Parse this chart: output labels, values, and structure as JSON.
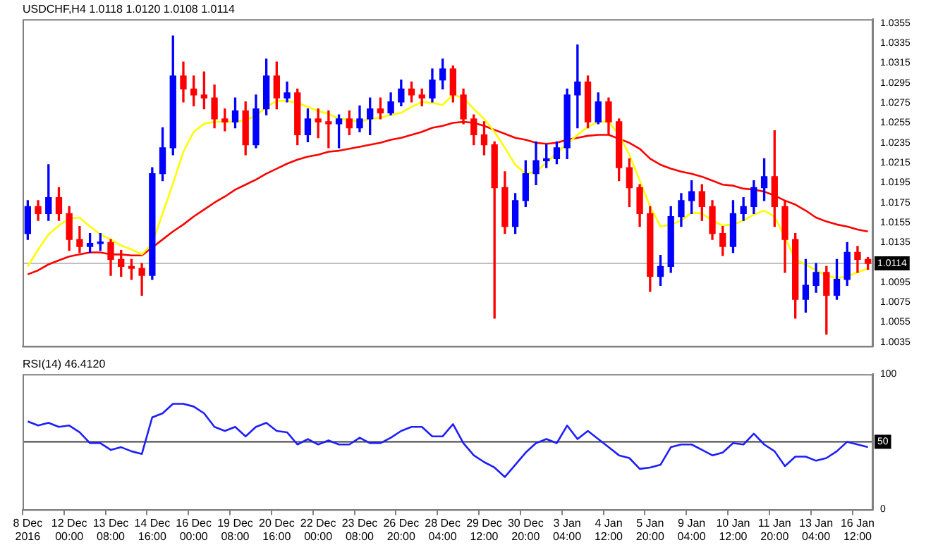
{
  "chart_data": [
    {
      "type": "candlestick",
      "title": "USDCHF,H4 1.0118 1.0120 1.0108 1.0114",
      "categories": [
        null,
        null,
        null,
        null,
        null,
        null,
        null,
        null,
        null,
        null,
        null,
        null,
        null,
        null,
        null,
        null,
        null,
        null,
        null,
        null,
        null,
        null,
        null,
        null,
        null,
        null,
        null,
        null,
        null,
        null,
        null,
        null,
        null,
        null,
        null,
        null,
        null,
        null,
        null,
        null,
        null,
        null,
        null,
        null,
        null,
        null,
        null,
        null,
        null,
        null,
        null,
        null,
        null,
        null,
        null,
        null,
        null,
        null,
        null,
        null,
        null,
        null,
        null,
        null,
        null,
        null,
        null,
        null,
        null,
        null,
        null,
        null,
        null,
        null,
        null,
        null,
        null,
        null,
        null,
        null,
        null,
        null
      ],
      "ohlc": [
        [
          1.0144,
          1.0177,
          1.0138,
          1.0171
        ],
        [
          1.0171,
          1.0177,
          1.0157,
          1.0164
        ],
        [
          1.0164,
          1.0213,
          1.0157,
          1.018
        ],
        [
          1.018,
          1.019,
          1.0157,
          1.0164
        ],
        [
          1.0164,
          1.0171,
          1.0127,
          1.0138
        ],
        [
          1.0138,
          1.0151,
          1.0125,
          1.0131
        ],
        [
          1.0131,
          1.0144,
          1.0125,
          1.0134
        ],
        [
          1.0134,
          1.0144,
          1.0127,
          1.0135
        ],
        [
          1.0135,
          1.0138,
          1.0102,
          1.0118
        ],
        [
          1.0118,
          1.0127,
          1.0101,
          1.0111
        ],
        [
          1.0111,
          1.0118,
          1.0098,
          1.0109
        ],
        [
          1.0109,
          1.0114,
          1.0082,
          1.0102
        ],
        [
          1.0102,
          1.021,
          1.0098,
          1.0204
        ],
        [
          1.0204,
          1.025,
          1.0197,
          1.023
        ],
        [
          1.023,
          1.0342,
          1.0223,
          1.0302
        ],
        [
          1.0302,
          1.0316,
          1.0276,
          1.0289
        ],
        [
          1.0289,
          1.0302,
          1.0272,
          1.0283
        ],
        [
          1.0283,
          1.0306,
          1.0269,
          1.028
        ],
        [
          1.028,
          1.0293,
          1.025,
          1.0259
        ],
        [
          1.0259,
          1.0269,
          1.0247,
          1.0256
        ],
        [
          1.0256,
          1.028,
          1.025,
          1.0267
        ],
        [
          1.0267,
          1.0276,
          1.0223,
          1.0233
        ],
        [
          1.0233,
          1.0283,
          1.023,
          1.0269
        ],
        [
          1.0269,
          1.0319,
          1.0263,
          1.0302
        ],
        [
          1.0302,
          1.0316,
          1.0269,
          1.028
        ],
        [
          1.028,
          1.0296,
          1.0276,
          1.0285
        ],
        [
          1.0285,
          1.0289,
          1.0233,
          1.0243
        ],
        [
          1.0243,
          1.0269,
          1.0236,
          1.0259
        ],
        [
          1.0259,
          1.0269,
          1.024,
          1.0256
        ],
        [
          1.0256,
          1.0267,
          1.023,
          1.0254
        ],
        [
          1.0254,
          1.0263,
          1.023,
          1.0259
        ],
        [
          1.0259,
          1.0267,
          1.0243,
          1.025
        ],
        [
          1.025,
          1.0272,
          1.0246,
          1.0259
        ],
        [
          1.0259,
          1.028,
          1.0243,
          1.0269
        ],
        [
          1.0269,
          1.028,
          1.0259,
          1.0265
        ],
        [
          1.0265,
          1.0285,
          1.0263,
          1.0276
        ],
        [
          1.0276,
          1.0298,
          1.0272,
          1.0289
        ],
        [
          1.0289,
          1.0296,
          1.0276,
          1.0283
        ],
        [
          1.0283,
          1.0289,
          1.0272,
          1.028
        ],
        [
          1.028,
          1.0309,
          1.0276,
          1.0298
        ],
        [
          1.0298,
          1.0319,
          1.0289,
          1.0309
        ],
        [
          1.0309,
          1.0312,
          1.0276,
          1.0283
        ],
        [
          1.0283,
          1.0289,
          1.0254,
          1.0259
        ],
        [
          1.0259,
          1.0263,
          1.0233,
          1.0243
        ],
        [
          1.0243,
          1.0256,
          1.0223,
          1.0233
        ],
        [
          1.0233,
          1.0236,
          1.0059,
          1.019
        ],
        [
          1.019,
          1.0206,
          1.0144,
          1.0151
        ],
        [
          1.0151,
          1.0184,
          1.0144,
          1.0177
        ],
        [
          1.0177,
          1.0217,
          1.0171,
          1.0204
        ],
        [
          1.0204,
          1.0236,
          1.0193,
          1.0217
        ],
        [
          1.0217,
          1.0233,
          1.021,
          1.0219
        ],
        [
          1.0219,
          1.0236,
          1.0214,
          1.023
        ],
        [
          1.023,
          1.0289,
          1.0219,
          1.0283
        ],
        [
          1.0283,
          1.0333,
          1.025,
          1.0296
        ],
        [
          1.0296,
          1.0302,
          1.025,
          1.0256
        ],
        [
          1.0256,
          1.0285,
          1.0254,
          1.0276
        ],
        [
          1.0276,
          1.028,
          1.0243,
          1.0256
        ],
        [
          1.0256,
          1.0259,
          1.0197,
          1.021
        ],
        [
          1.021,
          1.0219,
          1.0171,
          1.019
        ],
        [
          1.019,
          1.0193,
          1.0151,
          1.0164
        ],
        [
          1.0164,
          1.0171,
          1.0086,
          1.0101
        ],
        [
          1.0101,
          1.0122,
          1.0092,
          1.0111
        ],
        [
          1.0111,
          1.0171,
          1.0105,
          1.0161
        ],
        [
          1.0161,
          1.0184,
          1.0151,
          1.0177
        ],
        [
          1.0177,
          1.0197,
          1.0164,
          1.0186
        ],
        [
          1.0186,
          1.0193,
          1.0157,
          1.0171
        ],
        [
          1.0171,
          1.0177,
          1.0138,
          1.0144
        ],
        [
          1.0144,
          1.0151,
          1.0122,
          1.0131
        ],
        [
          1.0131,
          1.0177,
          1.0125,
          1.0164
        ],
        [
          1.0164,
          1.018,
          1.0157,
          1.0171
        ],
        [
          1.0171,
          1.0197,
          1.0164,
          1.019
        ],
        [
          1.019,
          1.0219,
          1.0177,
          1.0201
        ],
        [
          1.0201,
          1.0247,
          1.0151,
          1.0171
        ],
        [
          1.0171,
          1.0177,
          1.0105,
          1.0138
        ],
        [
          1.0138,
          1.0144,
          1.0059,
          1.0078
        ],
        [
          1.0078,
          1.0118,
          1.0065,
          1.0092
        ],
        [
          1.0092,
          1.0114,
          1.0085,
          1.0105
        ],
        [
          1.0105,
          1.0111,
          1.0043,
          1.0082
        ],
        [
          1.0082,
          1.0118,
          1.0078,
          1.0098
        ],
        [
          1.0098,
          1.0135,
          1.0092,
          1.0125
        ],
        [
          1.0125,
          1.0131,
          1.0105,
          1.0118
        ],
        [
          1.0118,
          1.012,
          1.0108,
          1.0114
        ]
      ],
      "colors": [
        "#0000ff",
        "#ff0000",
        "#0000ff",
        "#ff0000",
        "#ff0000",
        "#ff0000",
        "#0000ff",
        "#0000ff",
        "#ff0000",
        "#ff0000",
        "#ff0000",
        "#ff0000",
        "#0000ff",
        "#0000ff",
        "#0000ff",
        "#ff0000",
        "#ff0000",
        "#ff0000",
        "#ff0000",
        "#ff0000",
        "#0000ff",
        "#ff0000",
        "#0000ff",
        "#0000ff",
        "#ff0000",
        "#0000ff",
        "#ff0000",
        "#0000ff",
        "#ff0000",
        "#ff0000",
        "#0000ff",
        "#ff0000",
        "#0000ff",
        "#0000ff",
        "#ff0000",
        "#0000ff",
        "#0000ff",
        "#ff0000",
        "#ff0000",
        "#0000ff",
        "#0000ff",
        "#ff0000",
        "#ff0000",
        "#ff0000",
        "#ff0000",
        "#ff0000",
        "#ff0000",
        "#0000ff",
        "#0000ff",
        "#0000ff",
        "#0000ff",
        "#0000ff",
        "#0000ff",
        "#0000ff",
        "#ff0000",
        "#0000ff",
        "#ff0000",
        "#ff0000",
        "#ff0000",
        "#ff0000",
        "#ff0000",
        "#0000ff",
        "#0000ff",
        "#0000ff",
        "#0000ff",
        "#ff0000",
        "#ff0000",
        "#ff0000",
        "#0000ff",
        "#0000ff",
        "#0000ff",
        "#0000ff",
        "#ff0000",
        "#ff0000",
        "#ff0000",
        "#0000ff",
        "#0000ff",
        "#ff0000",
        "#0000ff",
        "#0000ff",
        "#ff0000",
        "#ff0000"
      ],
      "series": [
        {
          "type": "line",
          "color": "#ffff00",
          "values": [
            1.0111,
            1.0128,
            1.0143,
            1.0152,
            1.0159,
            1.016,
            1.0151,
            1.0143,
            1.0138,
            1.0132,
            1.0128,
            1.0123,
            1.0134,
            1.0164,
            1.0194,
            1.0226,
            1.0246,
            1.0254,
            1.0256,
            1.0256,
            1.0256,
            1.0258,
            1.0262,
            1.0271,
            1.0277,
            1.0277,
            1.0275,
            1.0271,
            1.0267,
            1.0264,
            1.0259,
            1.0258,
            1.0256,
            1.0259,
            1.026,
            1.0263,
            1.0265,
            1.0271,
            1.0276,
            1.0275,
            1.0273,
            1.0283,
            1.028,
            1.0269,
            1.0259,
            1.0246,
            1.023,
            1.0213,
            1.0204,
            1.0206,
            1.0215,
            1.0225,
            1.0234,
            1.0243,
            1.0251,
            1.0256,
            1.0256,
            1.0243,
            1.0223,
            1.0197,
            1.0171,
            1.0151,
            1.0153,
            1.0157,
            1.0165,
            1.0164,
            1.0157,
            1.0152,
            1.0153,
            1.0157,
            1.0163,
            1.0167,
            1.0161,
            1.014,
            1.0118,
            1.0113,
            1.0107,
            1.0102,
            1.0099,
            1.0101,
            1.0105,
            1.0109
          ]
        },
        {
          "type": "line",
          "color": "#ff0000",
          "values": [
            1.0103,
            1.0107,
            1.0113,
            1.0117,
            1.0121,
            1.0123,
            1.0125,
            1.0125,
            1.0123,
            1.0123,
            1.0122,
            1.0122,
            1.013,
            1.0138,
            1.0146,
            1.0153,
            1.0161,
            1.0168,
            1.0175,
            1.0181,
            1.0188,
            1.0193,
            1.0198,
            1.0204,
            1.0209,
            1.0214,
            1.0218,
            1.0221,
            1.0223,
            1.0226,
            1.0227,
            1.0229,
            1.0231,
            1.0233,
            1.0235,
            1.0238,
            1.024,
            1.0243,
            1.0246,
            1.025,
            1.0252,
            1.0255,
            1.0256,
            1.0255,
            1.0252,
            1.0248,
            1.0244,
            1.024,
            1.0238,
            1.0235,
            1.0234,
            1.0235,
            1.0238,
            1.024,
            1.0242,
            1.0243,
            1.0243,
            1.0239,
            1.0235,
            1.0229,
            1.0219,
            1.0213,
            1.0209,
            1.0206,
            1.0204,
            1.0201,
            1.0197,
            1.0193,
            1.0192,
            1.0189,
            1.0188,
            1.0186,
            1.0182,
            1.0177,
            1.0173,
            1.0167,
            1.016,
            1.0156,
            1.0153,
            1.0151,
            1.0148,
            1.0146
          ]
        }
      ],
      "ylim": [
        1.0031,
        1.0359
      ],
      "yticks": [
        1.0035,
        1.0055,
        1.0075,
        1.0095,
        1.0135,
        1.0155,
        1.0175,
        1.0195,
        1.0215,
        1.0235,
        1.0255,
        1.0275,
        1.0295,
        1.0315,
        1.0335,
        1.0355
      ],
      "ref_lines": [
        {
          "axis": "y",
          "value": 1.0114,
          "label": "1.0114",
          "color": "#c0c0c0"
        }
      ],
      "tick_labels": "y",
      "legend": false,
      "marker": "none"
    },
    {
      "type": "line",
      "title": "RSI(14) 46.4120",
      "categories": [
        "8 Dec 2016",
        null,
        null,
        null,
        "12 Dec 00:00",
        null,
        null,
        null,
        "13 Dec 08:00",
        null,
        null,
        null,
        "14 Dec 16:00",
        null,
        null,
        null,
        "16 Dec 00:00",
        null,
        null,
        null,
        "19 Dec 08:00",
        null,
        null,
        null,
        "20 Dec 16:00",
        null,
        null,
        null,
        "22 Dec 00:00",
        null,
        null,
        null,
        "23 Dec 08:00",
        null,
        null,
        null,
        "26 Dec 20:00",
        null,
        null,
        null,
        "28 Dec 04:00",
        null,
        null,
        null,
        "29 Dec 12:00",
        null,
        null,
        null,
        "30 Dec 20:00",
        null,
        null,
        null,
        "3 Jan 04:00",
        null,
        null,
        null,
        "4 Jan 12:00",
        null,
        null,
        null,
        "5 Jan 20:00",
        null,
        null,
        null,
        "9 Jan 04:00",
        null,
        null,
        null,
        "10 Jan 12:00",
        null,
        null,
        null,
        "11 Jan 20:00",
        null,
        null,
        null,
        "13 Jan 04:00",
        null,
        null,
        null,
        "16 Jan 12:00",
        null
      ],
      "series": [
        {
          "color": "#1e1eff",
          "values": [
            65,
            62,
            64,
            61,
            62,
            57,
            49,
            49,
            44,
            46,
            43,
            41,
            68,
            71,
            78,
            78,
            76,
            71,
            61,
            58,
            61,
            54,
            61,
            64,
            58,
            57,
            48,
            52,
            48,
            51,
            48,
            48,
            53,
            49,
            49,
            53,
            58,
            61,
            61,
            54,
            54,
            63,
            49,
            40,
            35,
            31,
            24,
            33,
            42,
            49,
            52,
            49,
            62,
            52,
            58,
            52,
            46,
            40,
            38,
            30,
            31,
            33,
            46,
            48,
            48,
            44,
            40,
            42,
            49,
            48,
            56,
            48,
            43,
            32,
            39,
            39,
            36,
            38,
            43,
            50,
            48,
            46
          ]
        }
      ],
      "ylim": [
        0,
        100
      ],
      "yticks": [
        0,
        100
      ],
      "ref_lines": [
        {
          "axis": "y",
          "value": 50,
          "label": "50",
          "color": "#404040"
        }
      ],
      "legend": false,
      "marker": "none"
    }
  ]
}
